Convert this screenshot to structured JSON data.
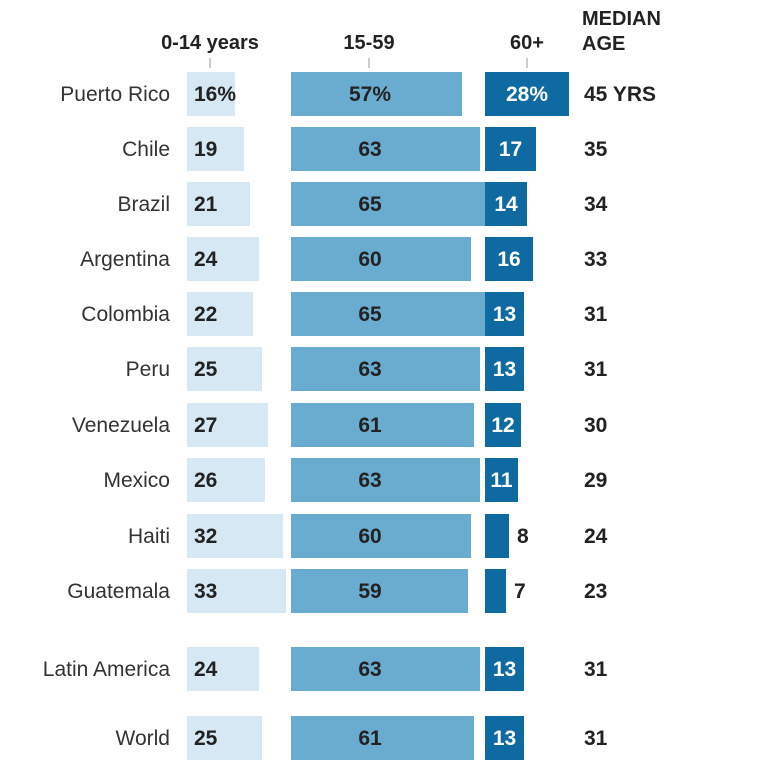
{
  "chart_data": {
    "type": "bar",
    "title": "",
    "series": [
      {
        "name": "0-14 years",
        "values": [
          16,
          19,
          21,
          24,
          22,
          25,
          27,
          26,
          32,
          33,
          24,
          25
        ],
        "color": "#d6e8f3"
      },
      {
        "name": "15-59",
        "values": [
          57,
          63,
          65,
          60,
          65,
          63,
          61,
          63,
          60,
          59,
          63,
          61
        ],
        "color": "#6aabd0"
      },
      {
        "name": "60+",
        "values": [
          28,
          17,
          14,
          16,
          13,
          13,
          12,
          11,
          8,
          7,
          13,
          13
        ],
        "color": "#0f6aa1"
      }
    ],
    "categories": [
      "Puerto Rico",
      "Chile",
      "Brazil",
      "Argentina",
      "Colombia",
      "Peru",
      "Venezuela",
      "Mexico",
      "Haiti",
      "Guatemala",
      "Latin America",
      "World"
    ],
    "value_labels": [
      [
        "16%",
        "19",
        "21",
        "24",
        "22",
        "25",
        "27",
        "26",
        "32",
        "33",
        "24",
        "25"
      ],
      [
        "57%",
        "63",
        "65",
        "60",
        "65",
        "63",
        "61",
        "63",
        "60",
        "59",
        "63",
        "61"
      ],
      [
        "28%",
        "17",
        "14",
        "16",
        "13",
        "13",
        "12",
        "11",
        "8",
        "7",
        "13",
        "13"
      ]
    ],
    "median_header": [
      "MEDIAN",
      "AGE"
    ],
    "median_age_labels": [
      "45 YRS",
      "35",
      "34",
      "33",
      "31",
      "31",
      "30",
      "29",
      "24",
      "23",
      "31",
      "31"
    ],
    "median_age": [
      45,
      35,
      34,
      33,
      31,
      31,
      30,
      29,
      24,
      23,
      31,
      31
    ]
  }
}
